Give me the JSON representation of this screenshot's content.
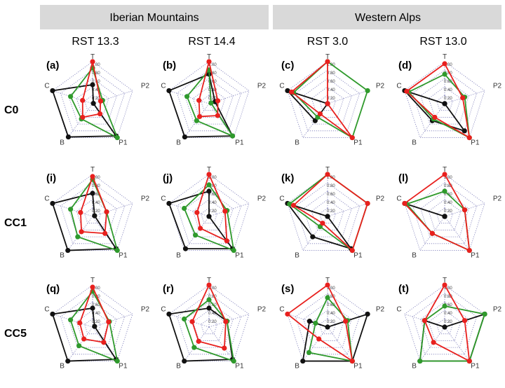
{
  "colors": {
    "black": "#111111",
    "red": "#e8201e",
    "green": "#2f9a2c",
    "header_bg": "#d9d9d9"
  },
  "header": {
    "groups": [
      "Iberian Mountains",
      "Western Alps"
    ]
  },
  "columns": [
    "RST 13.3",
    "RST 14.4",
    "RST 3.0",
    "RST 13.0"
  ],
  "rows": [
    "C0",
    "CC1",
    "CC5"
  ],
  "chart_data": {
    "type": "radar",
    "axes": [
      "T",
      "P2",
      "P1",
      "B",
      "C"
    ],
    "tick_labels": [
      "1.00",
      "0.80",
      "0.60",
      "0.40",
      "0.20"
    ],
    "rlim": [
      0,
      1
    ],
    "panels": [
      {
        "label": "(a)",
        "row": 0,
        "col": 0,
        "black": [
          0.45,
          0.02,
          0.95,
          0.98,
          1.0
        ],
        "red": [
          1.0,
          0.2,
          0.3,
          0.4,
          0.25
        ],
        "green": [
          0.85,
          0.25,
          1.0,
          0.45,
          0.55
        ]
      },
      {
        "label": "(b)",
        "row": 0,
        "col": 1,
        "black": [
          0.7,
          0.15,
          0.95,
          0.98,
          1.0
        ],
        "red": [
          1.0,
          0.22,
          0.35,
          0.38,
          0.25
        ],
        "green": [
          0.8,
          0.05,
          0.95,
          0.5,
          0.55
        ]
      },
      {
        "label": "(c)",
        "row": 0,
        "col": 2,
        "black": [
          0.0,
          0.0,
          0.0,
          0.5,
          1.0
        ],
        "red": [
          1.0,
          0.0,
          1.0,
          0.3,
          0.9
        ],
        "green": [
          1.0,
          1.0,
          1.0,
          0.4,
          0.85
        ]
      },
      {
        "label": "(d)",
        "row": 0,
        "col": 3,
        "black": [
          0.0,
          0.0,
          0.8,
          0.5,
          1.0
        ],
        "red": [
          0.95,
          0.45,
          1.0,
          0.4,
          0.95
        ],
        "green": [
          0.7,
          0.5,
          1.0,
          0.45,
          0.9
        ]
      },
      {
        "label": "(i)",
        "row": 1,
        "col": 0,
        "black": [
          0.55,
          0.05,
          0.95,
          1.0,
          1.0
        ],
        "red": [
          0.95,
          0.35,
          0.5,
          0.45,
          0.3
        ],
        "green": [
          0.88,
          0.35,
          1.0,
          0.6,
          0.55
        ]
      },
      {
        "label": "(j)",
        "row": 1,
        "col": 1,
        "black": [
          0.6,
          0.0,
          0.95,
          0.95,
          1.0
        ],
        "red": [
          1.0,
          0.4,
          0.72,
          0.35,
          0.3
        ],
        "green": [
          0.75,
          0.45,
          1.0,
          0.55,
          0.62
        ]
      },
      {
        "label": "(k)",
        "row": 1,
        "col": 2,
        "black": [
          0.0,
          0.0,
          0.95,
          0.6,
          1.0
        ],
        "red": [
          1.0,
          1.0,
          1.0,
          0.2,
          0.85
        ],
        "green": [
          1.0,
          1.0,
          1.0,
          0.3,
          0.95
        ]
      },
      {
        "label": "(l)",
        "row": 1,
        "col": 3,
        "black": [
          0.0,
          0.0,
          0.0,
          0.0,
          1.0
        ],
        "red": [
          1.0,
          0.5,
          1.0,
          0.5,
          1.0
        ],
        "green": [
          0.6,
          0.5,
          1.0,
          0.5,
          0.95
        ]
      },
      {
        "label": "(q)",
        "row": 2,
        "col": 0,
        "black": [
          0.45,
          0.05,
          0.95,
          1.0,
          1.0
        ],
        "red": [
          0.95,
          0.4,
          0.45,
          0.35,
          0.32
        ],
        "green": [
          0.85,
          0.42,
          1.0,
          0.55,
          0.55
        ]
      },
      {
        "label": "(r)",
        "row": 2,
        "col": 1,
        "black": [
          0.45,
          0.45,
          0.95,
          1.0,
          1.0
        ],
        "red": [
          1.0,
          0.42,
          0.62,
          0.42,
          0.42
        ],
        "green": [
          0.65,
          0.45,
          1.0,
          0.6,
          0.62
        ]
      },
      {
        "label": "(s)",
        "row": 2,
        "col": 2,
        "black": [
          0.0,
          1.0,
          1.0,
          1.0,
          0.45
        ],
        "red": [
          1.0,
          0.45,
          1.0,
          0.35,
          1.0
        ],
        "green": [
          0.7,
          0.5,
          1.0,
          0.75,
          0.3
        ]
      },
      {
        "label": "(t)",
        "row": 2,
        "col": 3,
        "black": [
          0.0,
          1.0,
          1.0,
          1.0,
          0.5
        ],
        "red": [
          1.0,
          0.5,
          1.0,
          0.45,
          0.5
        ],
        "green": [
          0.5,
          1.0,
          1.0,
          1.0,
          0.5
        ]
      }
    ]
  }
}
